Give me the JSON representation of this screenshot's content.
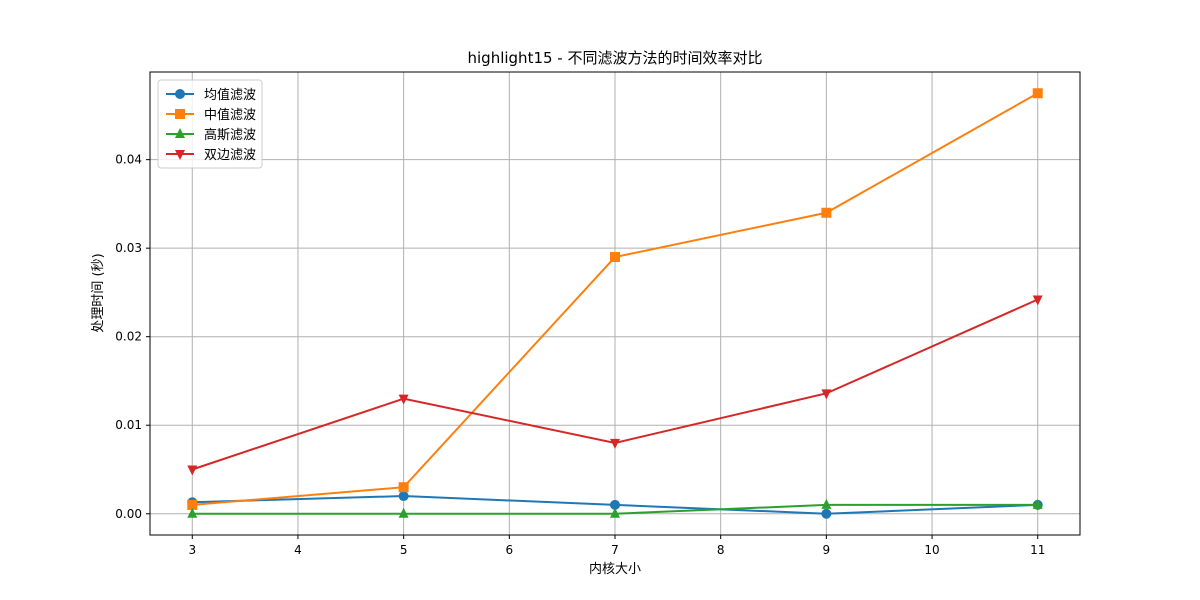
{
  "chart_data": {
    "type": "line",
    "title": "highlight15 - 不同滤波方法的时间效率对比",
    "xlabel": "内核大小",
    "ylabel": "处理时间 (秒)",
    "x": [
      3,
      5,
      7,
      9,
      11
    ],
    "xlim": [
      2.6,
      11.4
    ],
    "ylim": [
      -0.0024,
      0.0499
    ],
    "xticks": [
      3,
      4,
      5,
      6,
      7,
      8,
      9,
      10,
      11
    ],
    "yticks": [
      0.0,
      0.01,
      0.02,
      0.03,
      0.04
    ],
    "yticklabels": [
      "0.00",
      "0.01",
      "0.02",
      "0.03",
      "0.04"
    ],
    "grid": true,
    "legend_position": "top-left",
    "series": [
      {
        "name": "均值滤波",
        "values": [
          0.0013,
          0.002,
          0.001,
          0.0,
          0.001
        ],
        "color": "#1f77b4",
        "marker": "circle"
      },
      {
        "name": "中值滤波",
        "values": [
          0.001,
          0.003,
          0.029,
          0.034,
          0.0475
        ],
        "color": "#ff7f0e",
        "marker": "square"
      },
      {
        "name": "高斯滤波",
        "values": [
          0.0,
          0.0,
          0.0,
          0.001,
          0.001
        ],
        "color": "#2ca02c",
        "marker": "triangle-up"
      },
      {
        "name": "双边滤波",
        "values": [
          0.005,
          0.013,
          0.008,
          0.0136,
          0.0242
        ],
        "color": "#d62728",
        "marker": "triangle-down"
      }
    ]
  }
}
